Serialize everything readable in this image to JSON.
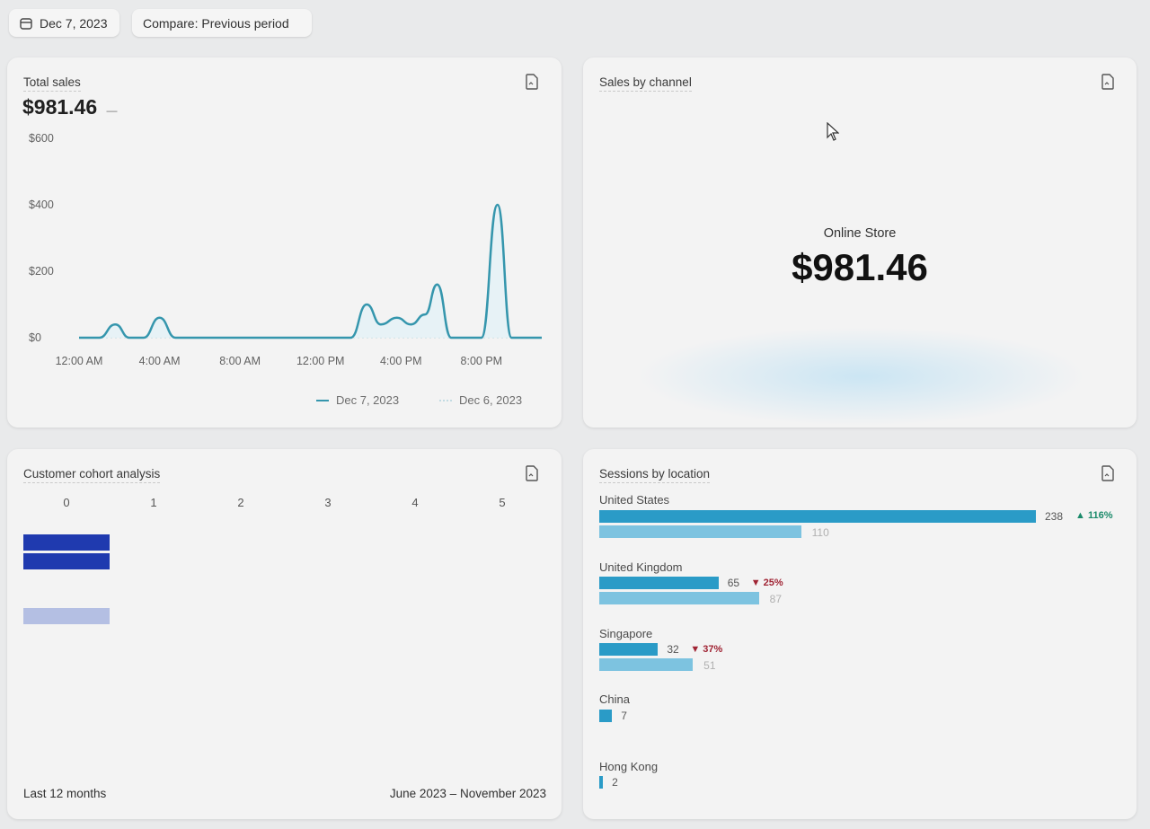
{
  "filters": {
    "date_label": "Dec 7, 2023",
    "compare_label": "Compare: Previous period"
  },
  "total_sales": {
    "title": "Total sales",
    "value": "$981.46",
    "value_suffix": "—",
    "y_ticks": [
      "$600",
      "$400",
      "$200",
      "$0"
    ],
    "x_ticks": [
      "12:00 AM",
      "4:00 AM",
      "8:00 AM",
      "12:00 PM",
      "4:00 PM",
      "8:00 PM"
    ],
    "legend_current": "Dec 7, 2023",
    "legend_previous": "Dec 6, 2023"
  },
  "chart_data": {
    "type": "line",
    "ylim": [
      0,
      600
    ],
    "yticks": [
      0,
      200,
      400,
      600
    ],
    "x_hours": [
      0,
      1,
      1.8,
      2.5,
      3.2,
      4,
      4.8,
      5.5,
      6,
      8,
      10,
      12,
      13.5,
      14.3,
      15,
      15.8,
      16.5,
      17.2,
      17.8,
      18.5,
      19.2,
      20,
      20.8,
      21.5,
      22.2,
      23
    ],
    "series": [
      {
        "name": "Dec 7, 2023",
        "values": [
          0,
          0,
          40,
          0,
          0,
          60,
          0,
          0,
          0,
          0,
          0,
          0,
          0,
          100,
          40,
          60,
          40,
          70,
          160,
          0,
          0,
          0,
          400,
          0,
          0,
          0
        ]
      }
    ],
    "xlabel": "",
    "ylabel": ""
  },
  "sales_by_channel": {
    "title": "Sales by channel",
    "channel": "Online Store",
    "value": "$981.46"
  },
  "cohort": {
    "title": "Customer cohort analysis",
    "columns": [
      "0",
      "1",
      "2",
      "3",
      "4",
      "5"
    ],
    "footer_left": "Last 12 months",
    "footer_right": "June 2023 – November 2023"
  },
  "sessions": {
    "title": "Sessions by location",
    "locations": [
      {
        "name": "United States",
        "current": 238,
        "previous": 110,
        "current_label": "238",
        "previous_label": "110",
        "change": "116%",
        "direction": "up"
      },
      {
        "name": "United Kingdom",
        "current": 65,
        "previous": 87,
        "current_label": "65",
        "previous_label": "87",
        "change": "25%",
        "direction": "down"
      },
      {
        "name": "Singapore",
        "current": 32,
        "previous": 51,
        "current_label": "32",
        "previous_label": "51",
        "change": "37%",
        "direction": "down"
      },
      {
        "name": "China",
        "current": 7,
        "previous": 0,
        "current_label": "7",
        "previous_label": "",
        "change": "",
        "direction": ""
      },
      {
        "name": "Hong Kong",
        "current": 2,
        "previous": 0,
        "current_label": "2",
        "previous_label": "",
        "change": "",
        "direction": ""
      }
    ]
  },
  "colors": {
    "line_current": "#3596ad",
    "bar_current": "#2a9bc7",
    "bar_previous": "#7dc3e0",
    "cohort_dark": "#1f3aaf",
    "cohort_light": "#b4bfe3",
    "change_up": "#1a8a6a",
    "change_down": "#a02434"
  },
  "icons": {
    "calendar": "calendar-icon",
    "export": "export-file-icon",
    "cursor": "mouse-cursor-icon"
  }
}
